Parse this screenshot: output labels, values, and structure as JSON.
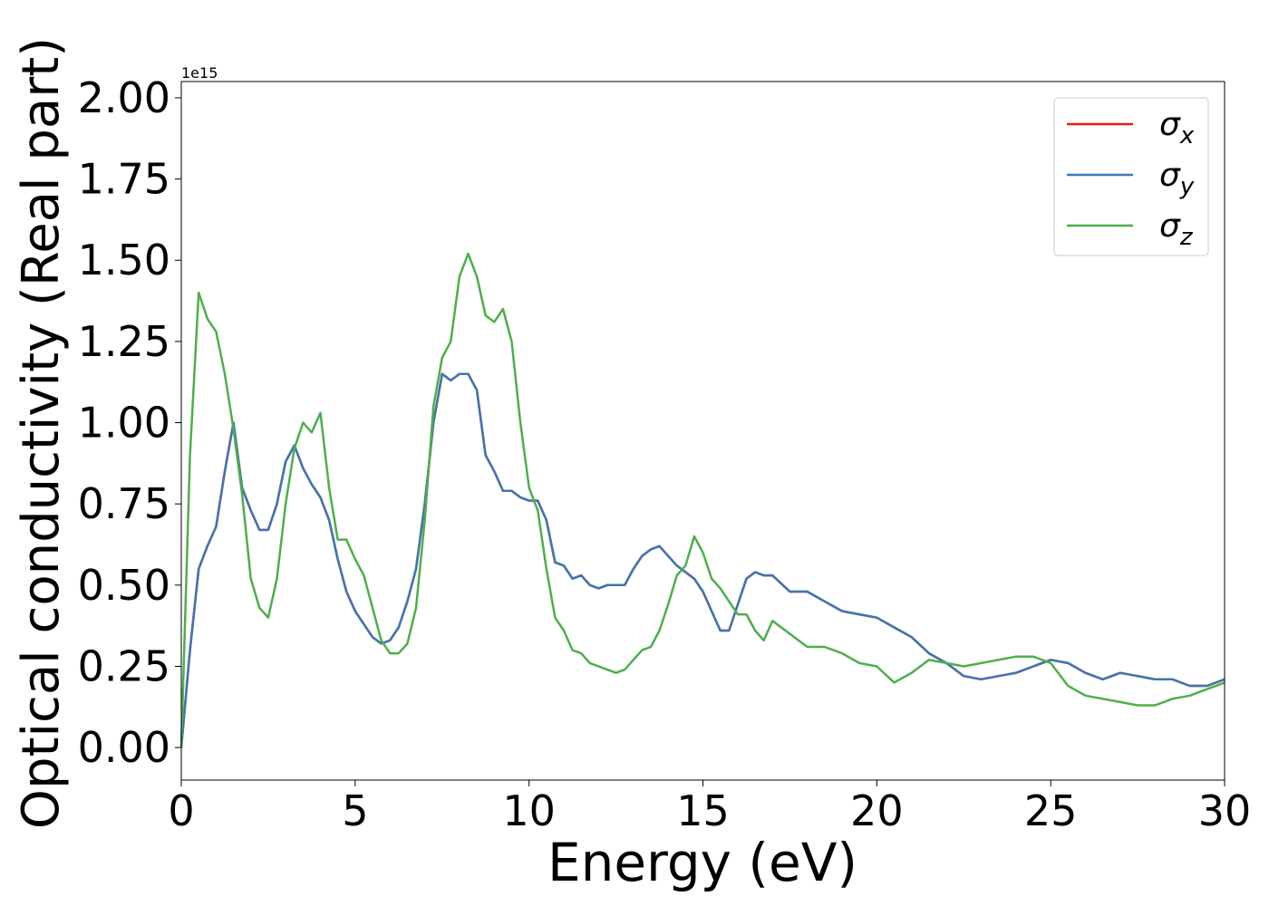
{
  "chart_data": {
    "type": "line",
    "xlabel": "Energy (eV)",
    "ylabel": "Optical conductivity (Real part)",
    "y_offset_label": "1e15",
    "x": [
      0,
      0.25,
      0.5,
      0.75,
      1,
      1.25,
      1.5,
      1.75,
      2,
      2.25,
      2.5,
      2.75,
      3,
      3.25,
      3.5,
      3.75,
      4,
      4.25,
      4.5,
      4.75,
      5,
      5.25,
      5.5,
      5.75,
      6,
      6.25,
      6.5,
      6.75,
      7,
      7.25,
      7.5,
      7.75,
      8,
      8.25,
      8.5,
      8.75,
      9,
      9.25,
      9.5,
      9.75,
      10,
      10.25,
      10.5,
      10.75,
      11,
      11.25,
      11.5,
      11.75,
      12,
      12.25,
      12.5,
      12.75,
      13,
      13.25,
      13.5,
      13.75,
      14,
      14.25,
      14.5,
      14.75,
      15,
      15.25,
      15.5,
      15.75,
      16,
      16.25,
      16.5,
      16.75,
      17,
      17.5,
      18,
      18.5,
      19,
      19.5,
      20,
      20.5,
      21,
      21.5,
      22,
      22.5,
      23,
      23.5,
      24,
      24.5,
      25,
      25.5,
      26,
      26.5,
      27,
      27.5,
      28,
      28.5,
      29,
      29.5,
      30
    ],
    "series": [
      {
        "name": "σx",
        "color": "#e41a1c",
        "values": [
          0,
          0.3,
          0.55,
          0.62,
          0.68,
          0.85,
          1.0,
          0.8,
          0.73,
          0.67,
          0.67,
          0.75,
          0.88,
          0.93,
          0.86,
          0.81,
          0.77,
          0.7,
          0.58,
          0.48,
          0.42,
          0.38,
          0.34,
          0.32,
          0.33,
          0.37,
          0.45,
          0.55,
          0.75,
          1.0,
          1.15,
          1.13,
          1.15,
          1.15,
          1.1,
          0.9,
          0.85,
          0.79,
          0.79,
          0.77,
          0.76,
          0.76,
          0.7,
          0.57,
          0.56,
          0.52,
          0.53,
          0.5,
          0.49,
          0.5,
          0.5,
          0.5,
          0.55,
          0.59,
          0.61,
          0.62,
          0.59,
          0.56,
          0.54,
          0.52,
          0.48,
          0.42,
          0.36,
          0.36,
          0.44,
          0.52,
          0.54,
          0.53,
          0.53,
          0.48,
          0.48,
          0.45,
          0.42,
          0.41,
          0.4,
          0.37,
          0.34,
          0.29,
          0.26,
          0.22,
          0.21,
          0.22,
          0.23,
          0.25,
          0.27,
          0.26,
          0.23,
          0.21,
          0.23,
          0.22,
          0.21,
          0.21,
          0.19,
          0.19,
          0.21
        ]
      },
      {
        "name": "σy",
        "color": "#3f76b3",
        "values": [
          0,
          0.3,
          0.55,
          0.62,
          0.68,
          0.85,
          1.0,
          0.8,
          0.73,
          0.67,
          0.67,
          0.75,
          0.88,
          0.93,
          0.86,
          0.81,
          0.77,
          0.7,
          0.58,
          0.48,
          0.42,
          0.38,
          0.34,
          0.32,
          0.33,
          0.37,
          0.45,
          0.55,
          0.75,
          1.0,
          1.15,
          1.13,
          1.15,
          1.15,
          1.1,
          0.9,
          0.85,
          0.79,
          0.79,
          0.77,
          0.76,
          0.76,
          0.7,
          0.57,
          0.56,
          0.52,
          0.53,
          0.5,
          0.49,
          0.5,
          0.5,
          0.5,
          0.55,
          0.59,
          0.61,
          0.62,
          0.59,
          0.56,
          0.54,
          0.52,
          0.48,
          0.42,
          0.36,
          0.36,
          0.44,
          0.52,
          0.54,
          0.53,
          0.53,
          0.48,
          0.48,
          0.45,
          0.42,
          0.41,
          0.4,
          0.37,
          0.34,
          0.29,
          0.26,
          0.22,
          0.21,
          0.22,
          0.23,
          0.25,
          0.27,
          0.26,
          0.23,
          0.21,
          0.23,
          0.22,
          0.21,
          0.21,
          0.19,
          0.19,
          0.21
        ]
      },
      {
        "name": "σz",
        "color": "#4daf4a",
        "values": [
          0,
          0.9,
          1.4,
          1.32,
          1.28,
          1.15,
          0.98,
          0.78,
          0.52,
          0.43,
          0.4,
          0.52,
          0.75,
          0.92,
          1.0,
          0.97,
          1.03,
          0.8,
          0.64,
          0.64,
          0.58,
          0.53,
          0.43,
          0.33,
          0.29,
          0.29,
          0.32,
          0.43,
          0.7,
          1.05,
          1.2,
          1.25,
          1.45,
          1.52,
          1.45,
          1.33,
          1.31,
          1.35,
          1.25,
          1.0,
          0.8,
          0.73,
          0.55,
          0.4,
          0.36,
          0.3,
          0.29,
          0.26,
          0.25,
          0.24,
          0.23,
          0.24,
          0.27,
          0.3,
          0.31,
          0.36,
          0.44,
          0.53,
          0.56,
          0.65,
          0.6,
          0.52,
          0.49,
          0.45,
          0.41,
          0.41,
          0.36,
          0.33,
          0.39,
          0.35,
          0.31,
          0.31,
          0.29,
          0.26,
          0.25,
          0.2,
          0.23,
          0.27,
          0.26,
          0.25,
          0.26,
          0.27,
          0.28,
          0.28,
          0.26,
          0.19,
          0.16,
          0.15,
          0.14,
          0.13,
          0.13,
          0.15,
          0.16,
          0.18,
          0.2
        ]
      }
    ],
    "xlim": [
      0,
      30
    ],
    "xticks": [
      0,
      5,
      10,
      15,
      20,
      25,
      30
    ],
    "ylim": [
      -0.1,
      2.05
    ],
    "yticks": [
      {
        "value": 0,
        "label": "0.00"
      },
      0.25,
      {
        "value": 0.5,
        "label": "0.50"
      },
      0.75,
      {
        "value": 1,
        "label": "1.00"
      },
      1.25,
      {
        "value": 1.5,
        "label": "1.50"
      },
      1.75,
      {
        "value": 2,
        "label": "2.00"
      }
    ],
    "legend": "upper right",
    "grid": false
  }
}
